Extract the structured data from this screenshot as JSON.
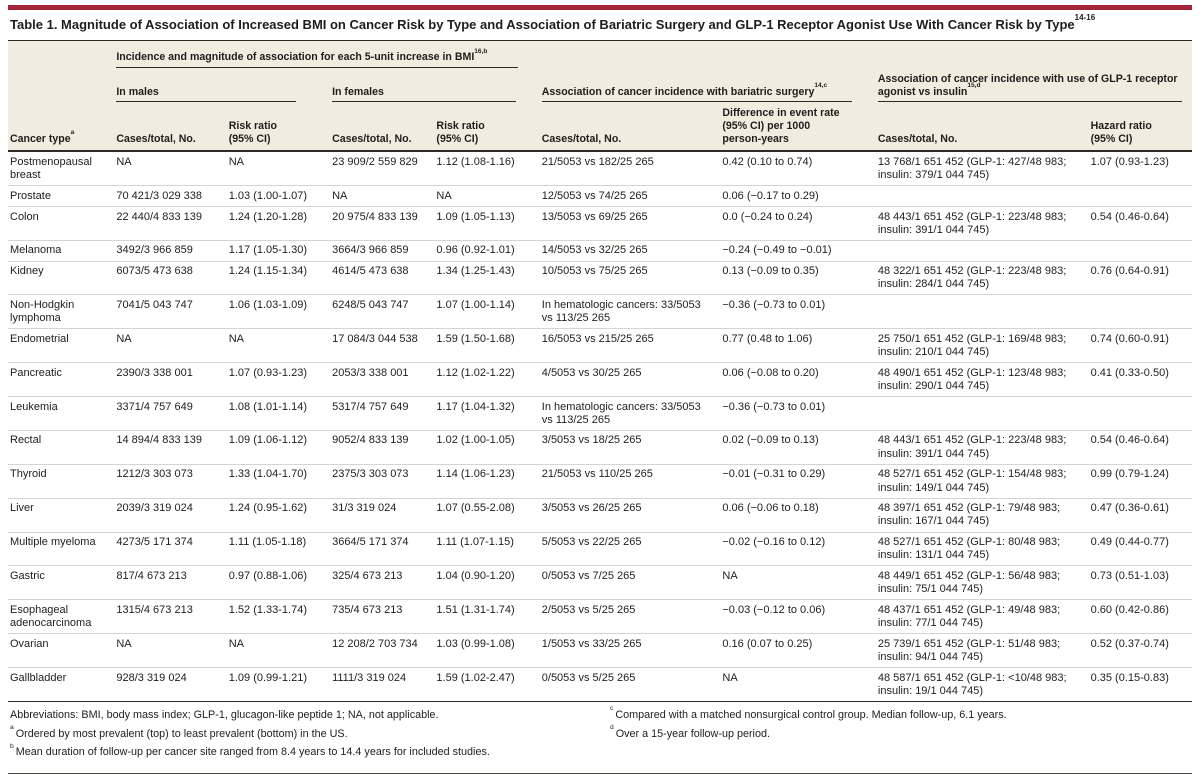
{
  "colors": {
    "accent_red": "#A32638",
    "header_bg": "#F0ECDF",
    "rule_dark": "#2E2B27",
    "rule_light": "#D8D4CB"
  },
  "table": {
    "title": "Table 1. Magnitude of Association of Increased BMI on Cancer Risk by Type and Association of Bariatric Surgery and GLP-1 Receptor Agonist Use With Cancer Risk by Type",
    "title_sup": "14-16",
    "groups": {
      "bmi": {
        "label": "Incidence and magnitude of association for each 5-unit increase in BMI",
        "sup": "16,b"
      },
      "males": "In males",
      "females": "In females",
      "bariatric": {
        "label": "Association of cancer incidence with bariatric surgery",
        "sup": "14,c"
      },
      "glp1": {
        "label": "Association of cancer incidence with use of GLP-1 receptor agonist vs insulin",
        "sup": "15,d"
      }
    },
    "columns": {
      "cancer_type": "Cancer type",
      "cancer_type_sup": "a",
      "cases": "Cases/total, No.",
      "risk_ratio": "Risk ratio\n(95% CI)",
      "diff": "Difference in event rate\n(95% CI) per 1000\nperson-years",
      "hazard": "Hazard ratio\n(95% CI)"
    },
    "rows": [
      {
        "cancer_type": "Postmenopausal breast",
        "m_cases": "NA",
        "m_rr": "NA",
        "f_cases": "23 909/2 559 829",
        "f_rr": "1.12 (1.08-1.16)",
        "b_cases": "21/5053 vs 182/25 265",
        "b_diff": "0.42 (0.10 to 0.74)",
        "g_cases": "13 768/1 651 452 (GLP-1: 427/48 983; insulin: 379/1 044 745)",
        "g_hr": "1.07 (0.93-1.23)"
      },
      {
        "cancer_type": "Prostate",
        "m_cases": "70 421/3 029 338",
        "m_rr": "1.03 (1.00-1.07)",
        "f_cases": "NA",
        "f_rr": "NA",
        "b_cases": "12/5053 vs 74/25 265",
        "b_diff": "0.06 (−0.17 to 0.29)",
        "g_cases": "",
        "g_hr": ""
      },
      {
        "cancer_type": "Colon",
        "m_cases": "22 440/4 833 139",
        "m_rr": "1.24 (1.20-1.28)",
        "f_cases": "20 975/4 833 139",
        "f_rr": "1.09 (1.05-1.13)",
        "b_cases": "13/5053 vs 69/25 265",
        "b_diff": "0.0 (−0.24 to 0.24)",
        "g_cases": "48 443/1 651 452 (GLP-1: 223/48 983; insulin: 391/1 044 745)",
        "g_hr": "0.54 (0.46-0.64)"
      },
      {
        "cancer_type": "Melanoma",
        "m_cases": "3492/3 966 859",
        "m_rr": "1.17 (1.05-1.30)",
        "f_cases": "3664/3 966 859",
        "f_rr": "0.96 (0.92-1.01)",
        "b_cases": "14/5053 vs 32/25 265",
        "b_diff": "−0.24 (−0.49 to −0.01)",
        "g_cases": "",
        "g_hr": ""
      },
      {
        "cancer_type": "Kidney",
        "m_cases": "6073/5 473 638",
        "m_rr": "1.24 (1.15-1.34)",
        "f_cases": "4614/5 473 638",
        "f_rr": "1.34 (1.25-1.43)",
        "b_cases": "10/5053 vs 75/25 265",
        "b_diff": "0.13 (−0.09 to 0.35)",
        "g_cases": "48 322/1 651 452 (GLP-1: 223/48 983; insulin: 284/1 044 745)",
        "g_hr": "0.76 (0.64-0.91)"
      },
      {
        "cancer_type": "Non-Hodgkin lymphoma",
        "m_cases": "7041/5 043 747",
        "m_rr": "1.06 (1.03-1.09)",
        "f_cases": "6248/5 043 747",
        "f_rr": "1.07 (1.00-1.14)",
        "b_cases": "In hematologic cancers: 33/5053 vs 113/25 265",
        "b_diff": "−0.36 (−0.73 to 0.01)",
        "g_cases": "",
        "g_hr": ""
      },
      {
        "cancer_type": "Endometrial",
        "m_cases": "NA",
        "m_rr": "NA",
        "f_cases": "17 084/3 044 538",
        "f_rr": "1.59 (1.50-1.68)",
        "b_cases": "16/5053 vs 215/25 265",
        "b_diff": "0.77 (0.48 to 1.06)",
        "g_cases": "25 750/1 651 452 (GLP-1: 169/48 983; insulin: 210/1 044 745)",
        "g_hr": "0.74 (0.60-0.91)"
      },
      {
        "cancer_type": "Pancreatic",
        "m_cases": "2390/3 338 001",
        "m_rr": "1.07 (0.93-1.23)",
        "f_cases": "2053/3 338 001",
        "f_rr": "1.12 (1.02-1.22)",
        "b_cases": "4/5053 vs 30/25 265",
        "b_diff": "0.06 (−0.08 to 0.20)",
        "g_cases": "48 490/1 651 452 (GLP-1: 123/48 983; insulin: 290/1 044 745)",
        "g_hr": "0.41 (0.33-0.50)"
      },
      {
        "cancer_type": "Leukemia",
        "m_cases": "3371/4 757 649",
        "m_rr": "1.08 (1.01-1.14)",
        "f_cases": "5317/4 757 649",
        "f_rr": "1.17 (1.04-1.32)",
        "b_cases": "In hematologic cancers: 33/5053 vs 113/25 265",
        "b_diff": "−0.36 (−0.73 to 0.01)",
        "g_cases": "",
        "g_hr": ""
      },
      {
        "cancer_type": "Rectal",
        "m_cases": "14 894/4 833 139",
        "m_rr": "1.09 (1.06-1.12)",
        "f_cases": "9052/4 833 139",
        "f_rr": "1.02 (1.00-1.05)",
        "b_cases": "3/5053 vs 18/25 265",
        "b_diff": "0.02 (−0.09 to 0.13)",
        "g_cases": "48 443/1 651 452 (GLP-1: 223/48 983; insulin: 391/1 044 745)",
        "g_hr": "0.54 (0.46-0.64)"
      },
      {
        "cancer_type": "Thyroid",
        "m_cases": "1212/3 303 073",
        "m_rr": "1.33 (1.04-1.70)",
        "f_cases": "2375/3 303 073",
        "f_rr": "1.14 (1.06-1.23)",
        "b_cases": "21/5053 vs 110/25 265",
        "b_diff": "−0.01 (−0.31 to 0.29)",
        "g_cases": "48 527/1 651 452 (GLP-1: 154/48 983; insulin: 149/1 044 745)",
        "g_hr": "0.99 (0.79-1.24)"
      },
      {
        "cancer_type": "Liver",
        "m_cases": "2039/3 319 024",
        "m_rr": "1.24 (0.95-1.62)",
        "f_cases": "31/3 319 024",
        "f_rr": "1.07 (0.55-2.08)",
        "b_cases": "3/5053 vs 26/25 265",
        "b_diff": "0.06 (−0.06 to 0.18)",
        "g_cases": "48 397/1 651 452 (GLP-1: 79/48 983; insulin: 167/1 044 745)",
        "g_hr": "0.47 (0.36-0.61)"
      },
      {
        "cancer_type": "Multiple myeloma",
        "m_cases": "4273/5 171 374",
        "m_rr": "1.11 (1.05-1.18)",
        "f_cases": "3664/5 171 374",
        "f_rr": "1.11 (1.07-1.15)",
        "b_cases": "5/5053 vs 22/25 265",
        "b_diff": "−0.02 (−0.16 to 0.12)",
        "g_cases": "48 527/1 651 452 (GLP-1: 80/48 983; insulin: 131/1 044 745)",
        "g_hr": "0.49 (0.44-0.77)"
      },
      {
        "cancer_type": "Gastric",
        "m_cases": "817/4 673 213",
        "m_rr": "0.97 (0.88-1.06)",
        "f_cases": "325/4 673 213",
        "f_rr": "1.04 (0.90-1.20)",
        "b_cases": "0/5053 vs 7/25 265",
        "b_diff": "NA",
        "g_cases": "48 449/1 651 452 (GLP-1: 56/48 983; insulin: 75/1 044 745)",
        "g_hr": "0.73 (0.51-1.03)"
      },
      {
        "cancer_type": "Esophageal adenocarcinoma",
        "m_cases": "1315/4 673 213",
        "m_rr": "1.52 (1.33-1.74)",
        "f_cases": "735/4 673 213",
        "f_rr": "1.51 (1.31-1.74)",
        "b_cases": "2/5053 vs 5/25 265",
        "b_diff": "−0.03 (−0.12 to 0.06)",
        "g_cases": "48 437/1 651 452 (GLP-1: 49/48 983; insulin: 77/1 044 745)",
        "g_hr": "0.60 (0.42-0.86)"
      },
      {
        "cancer_type": "Ovarian",
        "m_cases": "NA",
        "m_rr": "NA",
        "f_cases": "12 208/2 703 734",
        "f_rr": "1.03 (0.99-1.08)",
        "b_cases": "1/5053 vs 33/25 265",
        "b_diff": "0.16 (0.07 to 0.25)",
        "g_cases": "25 739/1 651 452 (GLP-1: 51/48 983; insulin: 94/1 044 745)",
        "g_hr": "0.52 (0.37-0.74)"
      },
      {
        "cancer_type": "Gallbladder",
        "m_cases": "928/3 319 024",
        "m_rr": "1.09 (0.99-1.21)",
        "f_cases": "1111/3 319 024",
        "f_rr": "1.59 (1.02-2.47)",
        "b_cases": "0/5053 vs 5/25 265",
        "b_diff": "NA",
        "g_cases": "48 587/1 651 452 (GLP-1: <10/48 983; insulin: 19/1 044 745)",
        "g_hr": "0.35 (0.15-0.83)"
      }
    ],
    "footnotes": {
      "abbreviations": "Abbreviations: BMI, body mass index; GLP-1, glucagon-like peptide 1; NA, not applicable.",
      "a": {
        "mark": "a",
        "text": "Ordered by most prevalent (top) to least prevalent (bottom) in the US."
      },
      "b": {
        "mark": "b",
        "text": "Mean duration of follow-up per cancer site ranged from 8.4 years to 14.4 years for included studies."
      },
      "c": {
        "mark": "c",
        "text": "Compared with a matched nonsurgical control group. Median follow-up, 6.1 years."
      },
      "d": {
        "mark": "d",
        "text": "Over a 15-year follow-up period."
      }
    }
  }
}
